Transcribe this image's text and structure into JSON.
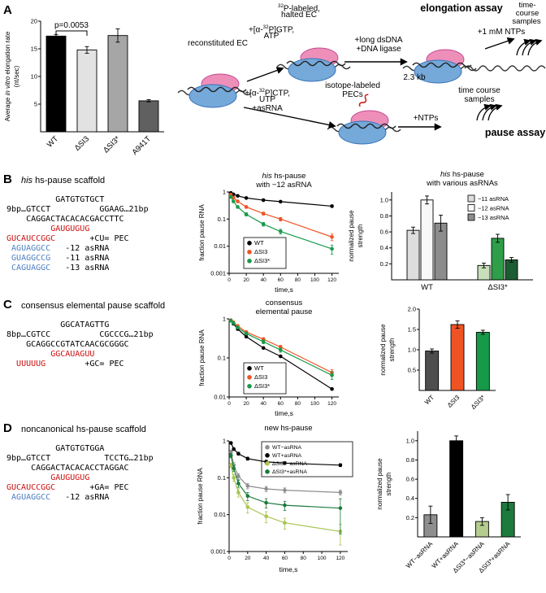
{
  "colors": {
    "seq_red": "#cc1111",
    "seq_blue": "#4e7fc1",
    "dsi3_orange": "#f05323",
    "dsi3star_green": "#169a4a"
  },
  "panelA": {
    "label": "A",
    "schematic": {
      "recon": "reconstituted EC",
      "gtp_l1": [
        {
          "t": "+[α-"
        },
        {
          "t": "32",
          "s": "sup"
        },
        {
          "t": "P]GTP,"
        }
      ],
      "gtp_l2": "ATP",
      "p32_l1": [
        {
          "t": "32",
          "s": "sup"
        },
        {
          "t": "P-labeled,"
        }
      ],
      "p32_l2": "halted EC",
      "elongation_title": "elongation assay",
      "tc1_l1": "time-",
      "tc1_l2": "course",
      "tc1_l3": "samples",
      "dsdna_l1": "+long dsDNA",
      "dsdna_l2": "+DNA ligase",
      "ntp1": "+1 mM NTPs",
      "kb": "2.3 kb",
      "ctp_l1": [
        {
          "t": "+[α-"
        },
        {
          "t": "32",
          "s": "sup"
        },
        {
          "t": "P]CTP,"
        }
      ],
      "ctp_l2": "UTP",
      "ctp_l3": "+asRNA",
      "pec_l1": "isotope-labeled",
      "pec_l2": "PECs",
      "ntps": "+NTPs",
      "tc2_l1": "time course",
      "tc2_l2": "samples",
      "pause_title": "pause assay"
    }
  },
  "panelB": {
    "label": "B",
    "heading": [
      {
        "t": "his",
        "s": "i"
      },
      {
        "t": " hs-pause scaffold"
      }
    ],
    "sequence": [
      [
        {
          "t": "          GATGTGTGCT"
        }
      ],
      [
        {
          "t": "9bp…GTCCT          GGAAG…21bp"
        }
      ],
      [
        {
          "t": "    CAGGACTACACACGACCTTC"
        }
      ],
      [
        {
          "t": "         "
        },
        {
          "t": "GAUGUGUG",
          "s": "red"
        }
      ],
      [
        {
          "t": "GUCAUCCGGC",
          "s": "red"
        },
        {
          "t": "       +CU= PEC"
        }
      ],
      [
        {
          "t": " "
        },
        {
          "t": "AGUAGGCC",
          "s": "blue"
        },
        {
          "t": "   -12 asRNA"
        }
      ],
      [
        {
          "t": " "
        },
        {
          "t": "GUAGGCCG",
          "s": "blue"
        },
        {
          "t": "   -11 asRNA"
        }
      ],
      [
        {
          "t": " "
        },
        {
          "t": "CAGUAGGC",
          "s": "blue"
        },
        {
          "t": "   -13 asRNA"
        }
      ]
    ]
  },
  "panelC": {
    "label": "C",
    "heading": [
      {
        "t": "consensus elemental pause scaffold"
      }
    ],
    "sequence": [
      [
        {
          "t": "           GGCATAGTTG"
        }
      ],
      [
        {
          "t": "8bp…CGTCC          CGCCCG…21bp"
        }
      ],
      [
        {
          "t": "    GCAGGCCGTATCAACGCGGGC"
        }
      ],
      [
        {
          "t": "         "
        },
        {
          "t": "GGCAUAGUU",
          "s": "red"
        }
      ],
      [
        {
          "t": "  "
        },
        {
          "t": "UUUUUG",
          "s": "red"
        },
        {
          "t": "        +GC= PEC"
        }
      ]
    ]
  },
  "panelD": {
    "label": "D",
    "heading": [
      {
        "t": "noncanonical hs-pause scaffold"
      }
    ],
    "sequence": [
      [
        {
          "t": "          GATGTGTGGA"
        }
      ],
      [
        {
          "t": "9bp…GTCCT           TCCTG…21bp"
        }
      ],
      [
        {
          "t": "     CAGGACTACACACCTAGGAC"
        }
      ],
      [
        {
          "t": "         "
        },
        {
          "t": "GAUGUGUG",
          "s": "red"
        }
      ],
      [
        {
          "t": "GUCAUCCGGC",
          "s": "red"
        },
        {
          "t": "       +GA= PEC"
        }
      ],
      [
        {
          "t": " "
        },
        {
          "t": "AGUAGGCC",
          "s": "blue"
        },
        {
          "t": "   -12 asRNA"
        }
      ]
    ]
  },
  "chart_data": [
    {
      "id": "A-elongation-rate",
      "type": "bar",
      "ylabel_lines": [
        [
          {
            "t": "Average "
          },
          {
            "t": "in vitro",
            "s": "i"
          },
          {
            "t": " elongation rate"
          }
        ],
        [
          {
            "t": "(nt/sec)"
          }
        ]
      ],
      "categories": [
        "WT",
        "ΔSI3",
        "ΔSI3*",
        "A941T"
      ],
      "values": [
        17.3,
        14.8,
        17.4,
        5.6
      ],
      "errors": [
        0.3,
        0.6,
        1.2,
        0.2
      ],
      "bar_colors": [
        "#000000",
        "#e2e2e2",
        "#a6a6a6",
        "#606060"
      ],
      "ylim": [
        0,
        20
      ],
      "yticks": [
        5,
        10,
        15,
        20
      ],
      "ytick_labels": [
        "5",
        "10",
        "15",
        "20"
      ],
      "rotate_labels": true,
      "annotation": {
        "text": "p=0.0053",
        "between": [
          0,
          1
        ]
      }
    },
    {
      "id": "B-pause-decay",
      "type": "line",
      "title_lines": [
        [
          {
            "t": "his",
            "s": "i"
          },
          {
            "t": " hs-pause"
          }
        ],
        [
          {
            "t": "with −12 asRNA"
          }
        ]
      ],
      "ylabel_lines": [
        [
          {
            "t": "fraction pause RNA"
          }
        ]
      ],
      "xlabel": "time,s",
      "ylog": true,
      "ylim": [
        0.001,
        1
      ],
      "yticks": [
        1,
        0.1,
        0.01,
        0.001
      ],
      "ytick_labels": [
        "1",
        "0.1",
        "0.01",
        "0.001"
      ],
      "xlim": [
        0,
        128
      ],
      "xticks": [
        0,
        20,
        40,
        60,
        80,
        100,
        120
      ],
      "x": [
        2,
        5,
        10,
        20,
        40,
        60,
        120
      ],
      "series": [
        {
          "name": "WT",
          "color": "#000000",
          "y": [
            0.92,
            0.82,
            0.72,
            0.6,
            0.5,
            0.44,
            0.3
          ],
          "err": [
            0.03,
            0.03,
            0.03,
            0.03,
            0.03,
            0.03,
            0.03
          ]
        },
        {
          "name": "ΔSI3",
          "color": "#f05323",
          "y": [
            0.8,
            0.62,
            0.45,
            0.28,
            0.16,
            0.1,
            0.022
          ],
          "err": [
            0.05,
            0.05,
            0.04,
            0.03,
            0.02,
            0.015,
            0.006
          ]
        },
        {
          "name": "ΔSI3*",
          "color": "#169a4a",
          "y": [
            0.66,
            0.45,
            0.28,
            0.15,
            0.065,
            0.035,
            0.008
          ],
          "err": [
            0.05,
            0.04,
            0.03,
            0.02,
            0.01,
            0.007,
            0.003
          ]
        }
      ]
    },
    {
      "id": "B-pause-strength",
      "type": "grouped-bar",
      "title_lines": [
        [
          {
            "t": "his",
            "s": "i"
          },
          {
            "t": " hs-pause"
          }
        ],
        [
          {
            "t": "with various asRNAs"
          }
        ]
      ],
      "ylabel_lines": [
        [
          {
            "t": "normalized pause"
          }
        ],
        [
          {
            "t": "strength"
          }
        ]
      ],
      "groups": [
        "WT",
        "ΔSI3*"
      ],
      "series_labels": [
        "−11 asRNA",
        "−12 asRNA",
        "−13 asRNA"
      ],
      "legend_colors": [
        "#dddddd",
        "#f8f8f8",
        "#8c8c8c"
      ],
      "values": [
        [
          0.62,
          1.0,
          0.71
        ],
        [
          0.18,
          0.52,
          0.25
        ]
      ],
      "errors": [
        [
          0.04,
          0.05,
          0.1
        ],
        [
          0.03,
          0.05,
          0.03
        ]
      ],
      "bar_colors": [
        [
          "#dddddd",
          "#f8f8f8",
          "#8c8c8c"
        ],
        [
          "#c6dfba",
          "#2f9e48",
          "#1c5c33"
        ]
      ],
      "ylim": [
        0,
        1.1
      ],
      "yticks": [
        0.2,
        0.4,
        0.6,
        0.8,
        1.0
      ],
      "ytick_labels": [
        "0.2",
        "0.4",
        "0.6",
        "0.8",
        "1.0"
      ]
    },
    {
      "id": "C-pause-decay",
      "type": "line",
      "title_lines": [
        [
          {
            "t": "consensus"
          }
        ],
        [
          {
            "t": "elemental pause"
          }
        ]
      ],
      "ylabel_lines": [
        [
          {
            "t": "fraction pause RNA"
          }
        ]
      ],
      "xlabel": "time,s",
      "ylog": true,
      "ylim": [
        0.01,
        1
      ],
      "yticks": [
        1,
        0.1,
        0.01
      ],
      "ytick_labels": [
        "1",
        "0.1",
        "0.01"
      ],
      "xlim": [
        0,
        128
      ],
      "xticks": [
        0,
        20,
        40,
        60,
        80,
        100,
        120
      ],
      "x": [
        2,
        5,
        10,
        20,
        40,
        60,
        120
      ],
      "series": [
        {
          "name": "WT",
          "color": "#000000",
          "y": [
            0.9,
            0.75,
            0.55,
            0.35,
            0.18,
            0.11,
            0.016
          ]
        },
        {
          "name": "ΔSI3",
          "color": "#f05323",
          "y": [
            0.93,
            0.82,
            0.66,
            0.46,
            0.3,
            0.19,
            0.042
          ],
          "err": [
            0.04,
            0.04,
            0.04,
            0.03,
            0.03,
            0.02,
            0.008
          ]
        },
        {
          "name": "ΔSI3*",
          "color": "#169a4a",
          "y": [
            0.9,
            0.78,
            0.6,
            0.42,
            0.26,
            0.16,
            0.036
          ],
          "err": [
            0.04,
            0.04,
            0.04,
            0.03,
            0.03,
            0.02,
            0.008
          ]
        }
      ]
    },
    {
      "id": "C-pause-strength",
      "type": "bar",
      "ylabel_lines": [
        [
          {
            "t": "normalized pause"
          }
        ],
        [
          {
            "t": "strength"
          }
        ]
      ],
      "categories": [
        "WT",
        "ΔSI3",
        "ΔSI3*"
      ],
      "values": [
        0.97,
        1.62,
        1.43
      ],
      "errors": [
        0.05,
        0.09,
        0.05
      ],
      "bar_colors": [
        "#4d4d4d",
        "#f05323",
        "#169a4a"
      ],
      "ylim": [
        0,
        2
      ],
      "yticks": [
        0.5,
        1.0,
        1.5,
        2.0
      ],
      "ytick_labels": [
        "0.5",
        "1.0",
        "1.5",
        "2.0"
      ],
      "rotate_labels": true
    },
    {
      "id": "D-pause-decay",
      "type": "line",
      "title_lines": [
        [
          {
            "t": "new hs-pause"
          }
        ]
      ],
      "ylabel_lines": [
        [
          {
            "t": "fraction pause RNA"
          }
        ]
      ],
      "xlabel": "time,s",
      "ylog": true,
      "ylim": [
        0.001,
        1
      ],
      "yticks": [
        1,
        0.1,
        0.01,
        0.001
      ],
      "ytick_labels": [
        "1",
        "0.1",
        "0.01",
        "0.001"
      ],
      "xlim": [
        0,
        128
      ],
      "xticks": [
        0,
        20,
        40,
        60,
        80,
        100,
        120
      ],
      "x": [
        2,
        5,
        10,
        20,
        40,
        60,
        120
      ],
      "series": [
        {
          "name": "WT−asRNA",
          "color": "#8e8e8e",
          "y": [
            0.5,
            0.22,
            0.11,
            0.06,
            0.05,
            0.046,
            0.04
          ],
          "err": [
            0.06,
            0.04,
            0.02,
            0.01,
            0.008,
            0.007,
            0.006
          ]
        },
        {
          "name": "WT+asRNA",
          "color": "#000000",
          "y": [
            0.88,
            0.6,
            0.45,
            0.33,
            0.27,
            0.25,
            0.22
          ],
          "err": [
            0.05,
            0.05,
            0.04,
            0.03,
            0.03,
            0.02,
            0.02
          ]
        },
        {
          "name": "ΔSI3*−asRNA",
          "color": "#a9c44f",
          "y": [
            0.22,
            0.1,
            0.04,
            0.016,
            0.009,
            0.006,
            0.0035
          ],
          "err": [
            0.03,
            0.02,
            0.01,
            0.005,
            0.003,
            0.002,
            0.002
          ]
        },
        {
          "name": "ΔSI3*+asRNA",
          "color": "#1c7a3d",
          "y": [
            0.4,
            0.18,
            0.07,
            0.032,
            0.021,
            0.018,
            0.015
          ],
          "err": [
            0.05,
            0.03,
            0.015,
            0.008,
            0.006,
            0.005,
            0.012
          ]
        }
      ]
    },
    {
      "id": "D-pause-strength",
      "type": "bar",
      "ylabel_lines": [
        [
          {
            "t": "normalized pause"
          }
        ],
        [
          {
            "t": "strength"
          }
        ]
      ],
      "categories": [
        "WT−asRNA",
        "WT+asRNA",
        "ΔSI3*−asRNA",
        "ΔSI3*+asRNA"
      ],
      "values": [
        0.23,
        1.0,
        0.16,
        0.36
      ],
      "errors": [
        0.09,
        0.05,
        0.04,
        0.08
      ],
      "bar_colors": [
        "#8e8e8e",
        "#000000",
        "#b5cc8e",
        "#1c7a3d"
      ],
      "ylim": [
        0,
        1.1
      ],
      "yticks": [
        0.2,
        0.4,
        0.6,
        0.8,
        1.0
      ],
      "ytick_labels": [
        "0.2",
        "0.4",
        "0.6",
        "0.8",
        "1.0"
      ],
      "rotate_labels": true
    }
  ]
}
